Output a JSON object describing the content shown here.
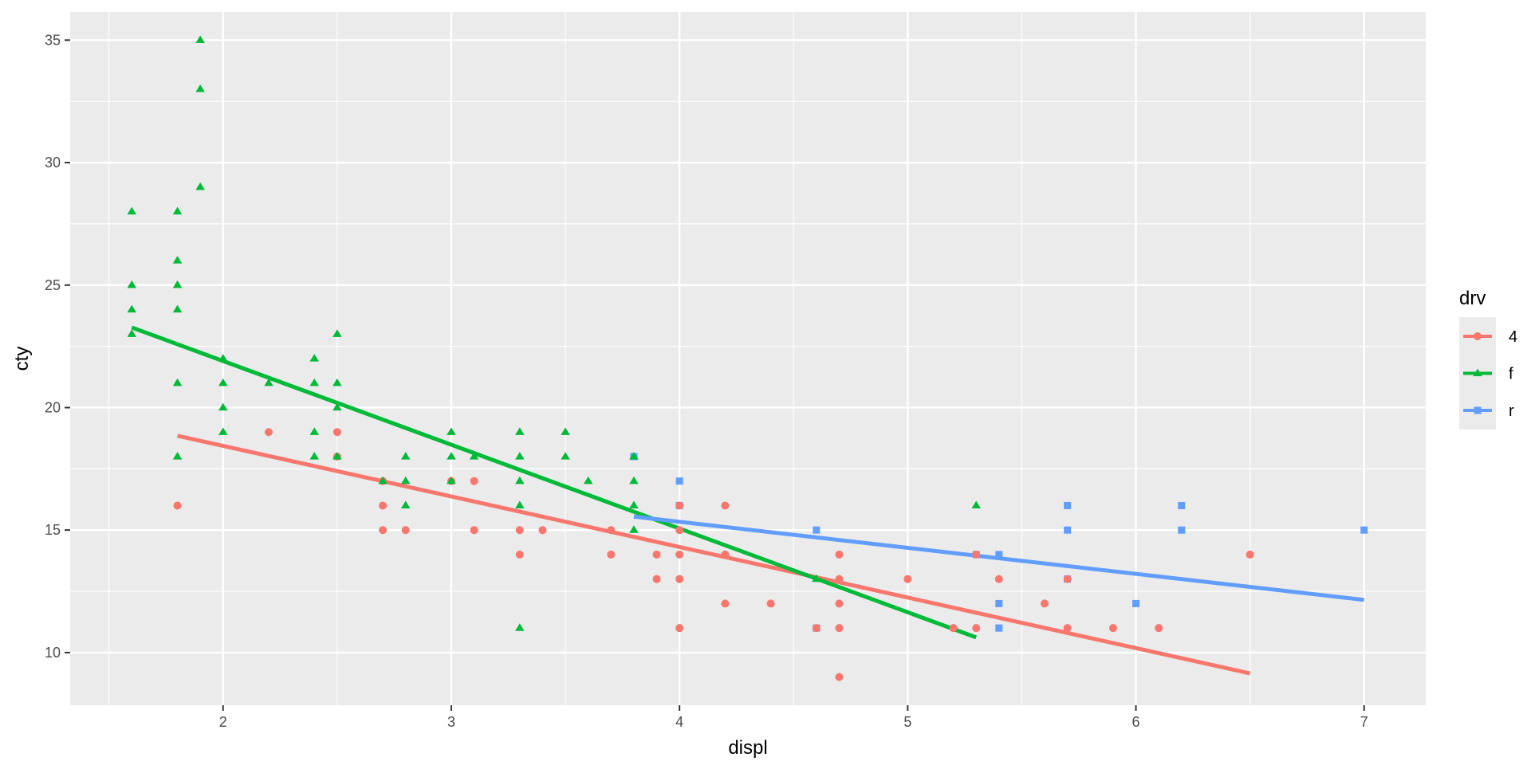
{
  "chart_data": {
    "type": "scatter",
    "xlabel": "displ",
    "ylabel": "cty",
    "xlim": [
      1.33,
      7.27
    ],
    "ylim": [
      7.85,
      36.15
    ],
    "xticks": [
      2,
      3,
      4,
      5,
      6,
      7
    ],
    "yticks": [
      10,
      15,
      20,
      25,
      30,
      35
    ],
    "grid": true,
    "legend": {
      "title": "drv",
      "placement": "right",
      "entries": [
        "4",
        "f",
        "r"
      ]
    },
    "series": [
      {
        "name": "4",
        "color": "#F8766D",
        "marker": "circle",
        "points": [
          [
            1.8,
            16
          ],
          [
            2.2,
            19
          ],
          [
            2.5,
            19
          ],
          [
            2.5,
            18
          ],
          [
            2.7,
            17
          ],
          [
            2.7,
            16
          ],
          [
            2.7,
            15
          ],
          [
            2.8,
            15
          ],
          [
            3.0,
            17
          ],
          [
            3.1,
            17
          ],
          [
            3.1,
            15
          ],
          [
            3.3,
            15
          ],
          [
            3.3,
            14
          ],
          [
            3.4,
            15
          ],
          [
            3.7,
            15
          ],
          [
            3.7,
            14
          ],
          [
            3.9,
            14
          ],
          [
            3.9,
            13
          ],
          [
            4.0,
            16
          ],
          [
            4.0,
            15
          ],
          [
            4.0,
            14
          ],
          [
            4.0,
            13
          ],
          [
            4.0,
            11
          ],
          [
            4.2,
            16
          ],
          [
            4.2,
            14
          ],
          [
            4.2,
            12
          ],
          [
            4.4,
            12
          ],
          [
            4.6,
            11
          ],
          [
            4.7,
            14
          ],
          [
            4.7,
            13
          ],
          [
            4.7,
            12
          ],
          [
            4.7,
            11
          ],
          [
            4.7,
            9
          ],
          [
            5.0,
            13
          ],
          [
            5.2,
            11
          ],
          [
            5.3,
            14
          ],
          [
            5.3,
            11
          ],
          [
            5.4,
            13
          ],
          [
            5.6,
            12
          ],
          [
            5.7,
            13
          ],
          [
            5.7,
            11
          ],
          [
            5.9,
            11
          ],
          [
            6.1,
            11
          ],
          [
            6.5,
            14
          ]
        ],
        "fit": [
          [
            1.8,
            18.85
          ],
          [
            6.5,
            9.15
          ]
        ]
      },
      {
        "name": "f",
        "color": "#00BA38",
        "marker": "triangle",
        "points": [
          [
            1.6,
            28
          ],
          [
            1.6,
            25
          ],
          [
            1.6,
            24
          ],
          [
            1.6,
            23
          ],
          [
            1.8,
            28
          ],
          [
            1.8,
            26
          ],
          [
            1.8,
            25
          ],
          [
            1.8,
            24
          ],
          [
            1.8,
            21
          ],
          [
            1.8,
            18
          ],
          [
            1.9,
            35
          ],
          [
            1.9,
            33
          ],
          [
            1.9,
            29
          ],
          [
            2.0,
            22
          ],
          [
            2.0,
            21
          ],
          [
            2.0,
            20
          ],
          [
            2.0,
            19
          ],
          [
            2.2,
            21
          ],
          [
            2.4,
            22
          ],
          [
            2.4,
            21
          ],
          [
            2.4,
            19
          ],
          [
            2.4,
            18
          ],
          [
            2.5,
            23
          ],
          [
            2.5,
            21
          ],
          [
            2.5,
            20
          ],
          [
            2.5,
            18
          ],
          [
            2.7,
            17
          ],
          [
            2.8,
            18
          ],
          [
            2.8,
            17
          ],
          [
            2.8,
            16
          ],
          [
            3.0,
            19
          ],
          [
            3.0,
            18
          ],
          [
            3.0,
            17
          ],
          [
            3.1,
            18
          ],
          [
            3.3,
            19
          ],
          [
            3.3,
            18
          ],
          [
            3.3,
            17
          ],
          [
            3.3,
            16
          ],
          [
            3.3,
            11
          ],
          [
            3.5,
            19
          ],
          [
            3.5,
            18
          ],
          [
            3.6,
            17
          ],
          [
            3.8,
            18
          ],
          [
            3.8,
            17
          ],
          [
            3.8,
            16
          ],
          [
            3.8,
            15
          ],
          [
            4.6,
            13
          ],
          [
            5.3,
            16
          ]
        ],
        "fit": [
          [
            1.6,
            23.27
          ],
          [
            5.3,
            10.62
          ]
        ]
      },
      {
        "name": "r",
        "color": "#619CFF",
        "marker": "square",
        "points": [
          [
            3.8,
            18
          ],
          [
            4.0,
            17
          ],
          [
            4.0,
            16
          ],
          [
            4.6,
            15
          ],
          [
            4.6,
            11
          ],
          [
            5.3,
            14
          ],
          [
            5.4,
            14
          ],
          [
            5.4,
            12
          ],
          [
            5.4,
            11
          ],
          [
            5.7,
            16
          ],
          [
            5.7,
            15
          ],
          [
            5.7,
            13
          ],
          [
            6.0,
            12
          ],
          [
            6.2,
            16
          ],
          [
            6.2,
            15
          ],
          [
            7.0,
            15
          ]
        ],
        "fit": [
          [
            3.8,
            15.55
          ],
          [
            7.0,
            12.15
          ]
        ]
      }
    ]
  }
}
